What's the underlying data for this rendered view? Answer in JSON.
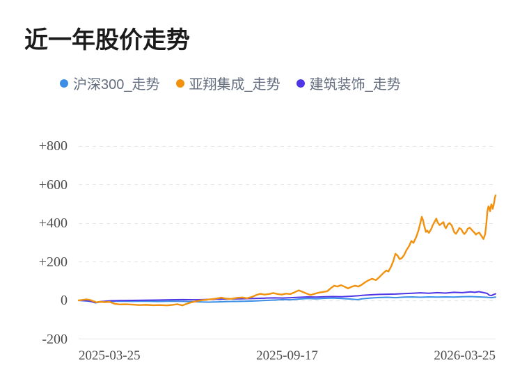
{
  "title": "近一年股价走势",
  "legend": [
    {
      "label": "沪深300_走势",
      "color": "#3a8ee6"
    },
    {
      "label": "亚翔集成_走势",
      "color": "#f2910d"
    },
    {
      "label": "建筑装饰_走势",
      "color": "#4e35e6"
    }
  ],
  "chart_data": {
    "type": "line",
    "title": "近一年股价走势",
    "xlabel": "",
    "ylabel": "",
    "ylim": [
      -200,
      800
    ],
    "grid": "horizontal-dashed",
    "legend_position": "top",
    "y_axis": {
      "ticks": [
        {
          "label": "+800",
          "value": 800
        },
        {
          "label": "+600",
          "value": 600
        },
        {
          "label": "+400",
          "value": 400
        },
        {
          "label": "+200",
          "value": 200
        },
        {
          "label": "0",
          "value": 0
        },
        {
          "label": "-200",
          "value": -200,
          "solid": true
        }
      ]
    },
    "x_axis": {
      "ticks": [
        {
          "label": "2025-03-25",
          "frac": 0,
          "align": "left"
        },
        {
          "label": "2025-09-17",
          "frac": 0.5,
          "align": "center"
        },
        {
          "label": "2026-03-25",
          "frac": 1,
          "align": "right"
        }
      ]
    },
    "series": [
      {
        "key": "hs300",
        "name": "沪深300_走势",
        "color": "#3a8ee6",
        "width": 2,
        "z": 1,
        "points": [
          [
            0,
            0
          ],
          [
            0.01,
            -2
          ],
          [
            0.02,
            -3
          ],
          [
            0.03,
            -6
          ],
          [
            0.04,
            -13
          ],
          [
            0.05,
            -9
          ],
          [
            0.065,
            -7
          ],
          [
            0.08,
            -5
          ],
          [
            0.1,
            -4
          ],
          [
            0.13,
            -5
          ],
          [
            0.16,
            -4
          ],
          [
            0.19,
            -6
          ],
          [
            0.22,
            -4
          ],
          [
            0.25,
            -5
          ],
          [
            0.28,
            -7
          ],
          [
            0.31,
            -9
          ],
          [
            0.33,
            -8
          ],
          [
            0.36,
            -6
          ],
          [
            0.39,
            -5
          ],
          [
            0.42,
            -3
          ],
          [
            0.45,
            0
          ],
          [
            0.47,
            2
          ],
          [
            0.49,
            4
          ],
          [
            0.51,
            3
          ],
          [
            0.53,
            7
          ],
          [
            0.55,
            10
          ],
          [
            0.57,
            8
          ],
          [
            0.59,
            11
          ],
          [
            0.61,
            12
          ],
          [
            0.63,
            10
          ],
          [
            0.65,
            7
          ],
          [
            0.67,
            4
          ],
          [
            0.68,
            8
          ],
          [
            0.7,
            12
          ],
          [
            0.72,
            15
          ],
          [
            0.74,
            16
          ],
          [
            0.76,
            14
          ],
          [
            0.78,
            17
          ],
          [
            0.8,
            18
          ],
          [
            0.82,
            16
          ],
          [
            0.84,
            18
          ],
          [
            0.86,
            17
          ],
          [
            0.88,
            18
          ],
          [
            0.9,
            17
          ],
          [
            0.92,
            19
          ],
          [
            0.94,
            20
          ],
          [
            0.96,
            18
          ],
          [
            0.97,
            17
          ],
          [
            0.98,
            16
          ],
          [
            0.99,
            14
          ],
          [
            1,
            17
          ]
        ]
      },
      {
        "key": "jianzhu",
        "name": "建筑装饰_走势",
        "color": "#4e35e6",
        "width": 2,
        "z": 2,
        "points": [
          [
            0,
            0
          ],
          [
            0.01,
            -1
          ],
          [
            0.02,
            -2
          ],
          [
            0.03,
            -5
          ],
          [
            0.04,
            -12
          ],
          [
            0.05,
            -7
          ],
          [
            0.065,
            -4
          ],
          [
            0.08,
            -2
          ],
          [
            0.1,
            -1
          ],
          [
            0.13,
            0
          ],
          [
            0.16,
            1
          ],
          [
            0.19,
            2
          ],
          [
            0.22,
            3
          ],
          [
            0.25,
            4
          ],
          [
            0.28,
            3
          ],
          [
            0.31,
            5
          ],
          [
            0.33,
            6
          ],
          [
            0.36,
            7
          ],
          [
            0.39,
            8
          ],
          [
            0.42,
            10
          ],
          [
            0.45,
            12
          ],
          [
            0.47,
            13
          ],
          [
            0.49,
            12
          ],
          [
            0.51,
            14
          ],
          [
            0.53,
            16
          ],
          [
            0.55,
            18
          ],
          [
            0.57,
            17
          ],
          [
            0.59,
            19
          ],
          [
            0.61,
            20
          ],
          [
            0.63,
            19
          ],
          [
            0.65,
            21
          ],
          [
            0.67,
            24
          ],
          [
            0.68,
            26
          ],
          [
            0.7,
            29
          ],
          [
            0.72,
            31
          ],
          [
            0.74,
            32
          ],
          [
            0.76,
            33
          ],
          [
            0.78,
            35
          ],
          [
            0.8,
            37
          ],
          [
            0.82,
            39
          ],
          [
            0.84,
            37
          ],
          [
            0.86,
            40
          ],
          [
            0.88,
            38
          ],
          [
            0.9,
            42
          ],
          [
            0.92,
            40
          ],
          [
            0.94,
            44
          ],
          [
            0.95,
            42
          ],
          [
            0.96,
            45
          ],
          [
            0.97,
            41
          ],
          [
            0.98,
            36
          ],
          [
            0.985,
            27
          ],
          [
            0.99,
            25
          ],
          [
            0.995,
            30
          ],
          [
            1,
            34
          ]
        ]
      },
      {
        "key": "yaxiang",
        "name": "亚翔集成_走势",
        "color": "#f2910d",
        "width": 2.4,
        "z": 3,
        "points": [
          [
            0,
            0
          ],
          [
            0.008,
            2
          ],
          [
            0.018,
            5
          ],
          [
            0.028,
            2
          ],
          [
            0.035,
            -4
          ],
          [
            0.042,
            -10
          ],
          [
            0.05,
            -7
          ],
          [
            0.062,
            -9
          ],
          [
            0.075,
            -8
          ],
          [
            0.087,
            -18
          ],
          [
            0.098,
            -21
          ],
          [
            0.112,
            -20
          ],
          [
            0.129,
            -22
          ],
          [
            0.145,
            -24
          ],
          [
            0.162,
            -23
          ],
          [
            0.179,
            -25
          ],
          [
            0.195,
            -24
          ],
          [
            0.212,
            -26
          ],
          [
            0.225,
            -23
          ],
          [
            0.237,
            -20
          ],
          [
            0.249,
            -26
          ],
          [
            0.259,
            -18
          ],
          [
            0.27,
            -10
          ],
          [
            0.284,
            -4
          ],
          [
            0.295,
            1
          ],
          [
            0.309,
            4
          ],
          [
            0.321,
            7
          ],
          [
            0.332,
            10
          ],
          [
            0.342,
            14
          ],
          [
            0.354,
            9
          ],
          [
            0.366,
            8
          ],
          [
            0.379,
            13
          ],
          [
            0.392,
            15
          ],
          [
            0.404,
            11
          ],
          [
            0.416,
            18
          ],
          [
            0.426,
            28
          ],
          [
            0.436,
            34
          ],
          [
            0.446,
            30
          ],
          [
            0.457,
            33
          ],
          [
            0.467,
            38
          ],
          [
            0.477,
            33
          ],
          [
            0.487,
            30
          ],
          [
            0.497,
            35
          ],
          [
            0.508,
            33
          ],
          [
            0.518,
            42
          ],
          [
            0.528,
            52
          ],
          [
            0.536,
            45
          ],
          [
            0.546,
            36
          ],
          [
            0.556,
            28
          ],
          [
            0.566,
            34
          ],
          [
            0.576,
            40
          ],
          [
            0.586,
            44
          ],
          [
            0.596,
            47
          ],
          [
            0.604,
            62
          ],
          [
            0.613,
            76
          ],
          [
            0.621,
            72
          ],
          [
            0.629,
            79
          ],
          [
            0.638,
            71
          ],
          [
            0.646,
            62
          ],
          [
            0.654,
            70
          ],
          [
            0.663,
            76
          ],
          [
            0.671,
            72
          ],
          [
            0.679,
            81
          ],
          [
            0.688,
            95
          ],
          [
            0.696,
            105
          ],
          [
            0.704,
            112
          ],
          [
            0.713,
            105
          ],
          [
            0.721,
            120
          ],
          [
            0.73,
            140
          ],
          [
            0.738,
            155
          ],
          [
            0.743,
            150
          ],
          [
            0.75,
            178
          ],
          [
            0.755,
            205
          ],
          [
            0.76,
            242
          ],
          [
            0.765,
            232
          ],
          [
            0.77,
            214
          ],
          [
            0.775,
            219
          ],
          [
            0.781,
            236
          ],
          [
            0.786,
            259
          ],
          [
            0.793,
            283
          ],
          [
            0.798,
            308
          ],
          [
            0.803,
            298
          ],
          [
            0.81,
            330
          ],
          [
            0.815,
            362
          ],
          [
            0.82,
            405
          ],
          [
            0.823,
            433
          ],
          [
            0.826,
            415
          ],
          [
            0.83,
            377
          ],
          [
            0.833,
            355
          ],
          [
            0.836,
            362
          ],
          [
            0.84,
            350
          ],
          [
            0.845,
            367
          ],
          [
            0.85,
            392
          ],
          [
            0.855,
            412
          ],
          [
            0.858,
            424
          ],
          [
            0.861,
            405
          ],
          [
            0.866,
            390
          ],
          [
            0.87,
            397
          ],
          [
            0.875,
            406
          ],
          [
            0.878,
            384
          ],
          [
            0.881,
            374
          ],
          [
            0.886,
            395
          ],
          [
            0.89,
            401
          ],
          [
            0.895,
            388
          ],
          [
            0.898,
            370
          ],
          [
            0.901,
            353
          ],
          [
            0.905,
            345
          ],
          [
            0.91,
            362
          ],
          [
            0.913,
            375
          ],
          [
            0.918,
            368
          ],
          [
            0.921,
            355
          ],
          [
            0.925,
            344
          ],
          [
            0.93,
            356
          ],
          [
            0.933,
            371
          ],
          [
            0.938,
            377
          ],
          [
            0.941,
            370
          ],
          [
            0.946,
            358
          ],
          [
            0.95,
            350
          ],
          [
            0.953,
            341
          ],
          [
            0.956,
            347
          ],
          [
            0.961,
            351
          ],
          [
            0.965,
            338
          ],
          [
            0.968,
            328
          ],
          [
            0.971,
            318
          ],
          [
            0.975,
            342
          ],
          [
            0.978,
            398
          ],
          [
            0.98,
            452
          ],
          [
            0.981,
            468
          ],
          [
            0.983,
            488
          ],
          [
            0.985,
            478
          ],
          [
            0.987,
            462
          ],
          [
            0.988,
            480
          ],
          [
            0.99,
            498
          ],
          [
            0.992,
            486
          ],
          [
            0.993,
            474
          ],
          [
            0.995,
            490
          ],
          [
            0.997,
            512
          ],
          [
            0.998,
            528
          ],
          [
            1,
            545
          ]
        ]
      }
    ]
  }
}
